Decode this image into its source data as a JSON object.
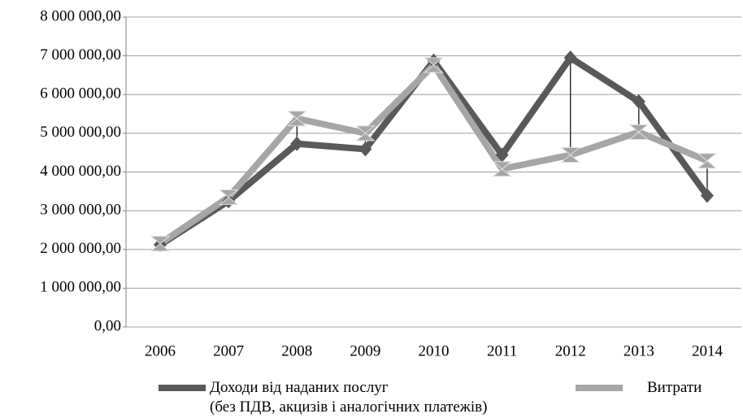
{
  "chart_data": {
    "type": "line",
    "categories": [
      "2006",
      "2007",
      "2008",
      "2009",
      "2010",
      "2011",
      "2012",
      "2013",
      "2014"
    ],
    "series": [
      {
        "name": "Доходи від наданих послуг\n (без ПДВ, акцизів і аналогічних  платежів)",
        "color": "#595959",
        "values": [
          2120000,
          3250000,
          4730000,
          4590000,
          6870000,
          4440000,
          6950000,
          5820000,
          3390000
        ]
      },
      {
        "name": "Витрати",
        "color": "#a6a6a6",
        "values": [
          2150000,
          3350000,
          5380000,
          5000000,
          6760000,
          4080000,
          4440000,
          5030000,
          4290000
        ]
      }
    ],
    "ylim": [
      0,
      8000000
    ],
    "yticks": [
      {
        "value": 0,
        "label": "0,00"
      },
      {
        "value": 1000000,
        "label": "1 000 000,00"
      },
      {
        "value": 2000000,
        "label": "2 000 000,00"
      },
      {
        "value": 3000000,
        "label": "3 000 000,00"
      },
      {
        "value": 4000000,
        "label": "4 000 000,00"
      },
      {
        "value": 5000000,
        "label": "5 000 000,00"
      },
      {
        "value": 6000000,
        "label": "6 000 000,00"
      },
      {
        "value": 7000000,
        "label": "7 000 000,00"
      },
      {
        "value": 8000000,
        "label": "8 000 000,00"
      }
    ],
    "grid": true
  }
}
